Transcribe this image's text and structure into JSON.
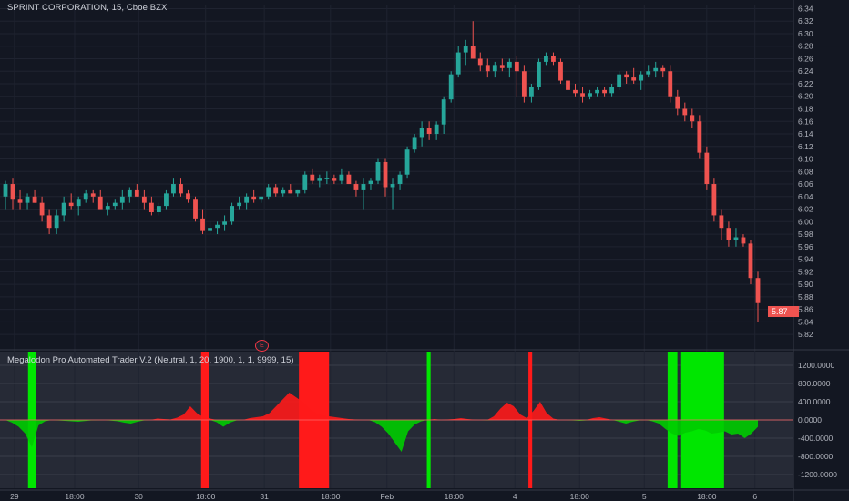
{
  "header": {
    "title": "SPRINT CORPORATION, 15, Cboe BZX",
    "indicator_title": "Megalodon Pro Automated Trader V.2 (Neutral, 1, 20, 1900, 1, 1, 9999, 15)",
    "last_price_badge": "5.87",
    "event_marker": "E"
  },
  "colors": {
    "background": "#131722",
    "up": "#26a69a",
    "down": "#ef5350",
    "green_band": "#00e600",
    "red_band": "#ff1a1a",
    "osc_fill": "#ff1a1a"
  },
  "chart_data": [
    {
      "type": "candlestick",
      "title": "SPRINT CORPORATION, 15, Cboe BZX",
      "y_ticks": [
        "6.34",
        "6.32",
        "6.30",
        "6.28",
        "6.26",
        "6.24",
        "6.22",
        "6.20",
        "6.18",
        "6.16",
        "6.14",
        "6.12",
        "6.10",
        "6.08",
        "6.06",
        "6.04",
        "6.02",
        "6.00",
        "5.98",
        "5.96",
        "5.94",
        "5.92",
        "5.90",
        "5.88",
        "5.86",
        "5.84",
        "5.82"
      ],
      "ylim": [
        5.81,
        6.345
      ],
      "x_ticks": [
        "29",
        "18:00",
        "30",
        "18:00",
        "31",
        "18:00",
        "Feb",
        "18:00",
        "4",
        "18:00",
        "5",
        "18:00",
        "6"
      ],
      "series": [
        {
          "ohlc": [
            [
              6.04,
              6.065,
              6.02,
              6.06
            ],
            [
              6.06,
              6.07,
              6.02,
              6.035
            ],
            [
              6.035,
              6.05,
              6.02,
              6.03
            ],
            [
              6.03,
              6.045,
              6.02,
              6.04
            ],
            [
              6.04,
              6.05,
              6.03,
              6.03
            ],
            [
              6.03,
              6.04,
              6.0,
              6.01
            ],
            [
              6.01,
              6.02,
              5.98,
              5.99
            ],
            [
              5.99,
              6.02,
              5.98,
              6.01
            ],
            [
              6.01,
              6.04,
              6.0,
              6.03
            ],
            [
              6.03,
              6.045,
              6.02,
              6.025
            ],
            [
              6.025,
              6.04,
              6.01,
              6.035
            ],
            [
              6.035,
              6.05,
              6.03,
              6.045
            ],
            [
              6.045,
              6.05,
              6.03,
              6.04
            ],
            [
              6.04,
              6.05,
              6.02,
              6.02
            ],
            [
              6.02,
              6.03,
              6.01,
              6.025
            ],
            [
              6.025,
              6.035,
              6.02,
              6.03
            ],
            [
              6.03,
              6.05,
              6.02,
              6.04
            ],
            [
              6.04,
              6.055,
              6.03,
              6.05
            ],
            [
              6.05,
              6.06,
              6.04,
              6.04
            ],
            [
              6.04,
              6.05,
              6.02,
              6.03
            ],
            [
              6.03,
              6.04,
              6.01,
              6.015
            ],
            [
              6.015,
              6.03,
              6.01,
              6.025
            ],
            [
              6.025,
              6.05,
              6.02,
              6.045
            ],
            [
              6.045,
              6.07,
              6.04,
              6.06
            ],
            [
              6.06,
              6.07,
              6.04,
              6.045
            ],
            [
              6.045,
              6.05,
              6.03,
              6.035
            ],
            [
              6.035,
              6.04,
              6.0,
              6.005
            ],
            [
              6.005,
              6.02,
              5.98,
              5.985
            ],
            [
              5.985,
              6.0,
              5.98,
              5.99
            ],
            [
              5.99,
              6.0,
              5.98,
              5.995
            ],
            [
              5.995,
              6.01,
              5.985,
              6.0
            ],
            [
              6.0,
              6.03,
              5.995,
              6.025
            ],
            [
              6.025,
              6.04,
              6.02,
              6.03
            ],
            [
              6.03,
              6.045,
              6.02,
              6.04
            ],
            [
              6.04,
              6.05,
              6.03,
              6.035
            ],
            [
              6.035,
              6.04,
              6.03,
              6.04
            ],
            [
              6.04,
              6.06,
              6.035,
              6.055
            ],
            [
              6.055,
              6.06,
              6.04,
              6.045
            ],
            [
              6.045,
              6.055,
              6.04,
              6.05
            ],
            [
              6.05,
              6.06,
              6.045,
              6.045
            ],
            [
              6.045,
              6.05,
              6.04,
              6.05
            ],
            [
              6.05,
              6.08,
              6.045,
              6.075
            ],
            [
              6.075,
              6.085,
              6.06,
              6.065
            ],
            [
              6.065,
              6.075,
              6.055,
              6.07
            ],
            [
              6.07,
              6.08,
              6.06,
              6.07
            ],
            [
              6.07,
              6.075,
              6.06,
              6.065
            ],
            [
              6.065,
              6.085,
              6.06,
              6.075
            ],
            [
              6.075,
              6.08,
              6.06,
              6.06
            ],
            [
              6.06,
              6.065,
              6.04,
              6.05
            ],
            [
              6.05,
              6.07,
              6.02,
              6.06
            ],
            [
              6.06,
              6.07,
              6.05,
              6.065
            ],
            [
              6.065,
              6.1,
              6.06,
              6.095
            ],
            [
              6.095,
              6.1,
              6.04,
              6.055
            ],
            [
              6.055,
              6.07,
              6.02,
              6.06
            ],
            [
              6.06,
              6.08,
              6.05,
              6.075
            ],
            [
              6.075,
              6.12,
              6.07,
              6.115
            ],
            [
              6.115,
              6.14,
              6.11,
              6.135
            ],
            [
              6.135,
              6.16,
              6.12,
              6.15
            ],
            [
              6.15,
              6.16,
              6.13,
              6.14
            ],
            [
              6.14,
              6.16,
              6.13,
              6.155
            ],
            [
              6.155,
              6.2,
              6.14,
              6.195
            ],
            [
              6.195,
              6.24,
              6.19,
              6.235
            ],
            [
              6.235,
              6.28,
              6.23,
              6.27
            ],
            [
              6.27,
              6.29,
              6.25,
              6.28
            ],
            [
              6.28,
              6.32,
              6.26,
              6.26
            ],
            [
              6.26,
              6.27,
              6.24,
              6.25
            ],
            [
              6.25,
              6.26,
              6.23,
              6.24
            ],
            [
              6.24,
              6.255,
              6.23,
              6.25
            ],
            [
              6.25,
              6.26,
              6.24,
              6.245
            ],
            [
              6.245,
              6.26,
              6.23,
              6.255
            ],
            [
              6.255,
              6.265,
              6.2,
              6.24
            ],
            [
              6.24,
              6.25,
              6.19,
              6.2
            ],
            [
              6.2,
              6.22,
              6.19,
              6.215
            ],
            [
              6.215,
              6.26,
              6.21,
              6.255
            ],
            [
              6.255,
              6.27,
              6.25,
              6.265
            ],
            [
              6.265,
              6.27,
              6.25,
              6.255
            ],
            [
              6.255,
              6.26,
              6.22,
              6.225
            ],
            [
              6.225,
              6.23,
              6.2,
              6.21
            ],
            [
              6.21,
              6.22,
              6.2,
              6.205
            ],
            [
              6.205,
              6.215,
              6.19,
              6.2
            ],
            [
              6.2,
              6.21,
              6.195,
              6.205
            ],
            [
              6.205,
              6.215,
              6.2,
              6.21
            ],
            [
              6.21,
              6.215,
              6.2,
              6.205
            ],
            [
              6.205,
              6.22,
              6.2,
              6.215
            ],
            [
              6.215,
              6.24,
              6.21,
              6.235
            ],
            [
              6.235,
              6.24,
              6.22,
              6.23
            ],
            [
              6.23,
              6.245,
              6.22,
              6.225
            ],
            [
              6.225,
              6.24,
              6.21,
              6.235
            ],
            [
              6.235,
              6.25,
              6.23,
              6.24
            ],
            [
              6.24,
              6.255,
              6.23,
              6.245
            ]
          ]
        }
      ]
    },
    {
      "type": "area",
      "title": "Megalodon Pro Automated Trader V.2 (Neutral, 1, 20, 1900, 1, 1, 9999, 15)",
      "y_ticks": [
        "1200.0000",
        "800.0000",
        "400.0000",
        "0.0000",
        "-400.0000",
        "-800.0000",
        "-1200.0000"
      ],
      "ylim": [
        -1500,
        1500
      ],
      "bands": [
        {
          "color": "green",
          "x": [
            0.03,
            0.04
          ]
        },
        {
          "color": "red",
          "x": [
            0.26,
            0.27
          ]
        },
        {
          "color": "red",
          "x": [
            0.39,
            0.43
          ]
        },
        {
          "color": "green",
          "x": [
            0.56,
            0.565
          ]
        },
        {
          "color": "red",
          "x": [
            0.695,
            0.7
          ]
        },
        {
          "color": "green",
          "x": [
            0.88,
            0.893
          ]
        },
        {
          "color": "green",
          "x": [
            0.898,
            0.955
          ]
        }
      ],
      "series": [
        {
          "values": [
            0,
            -60,
            -150,
            -300,
            -600,
            -120,
            -30,
            0,
            -10,
            -20,
            -30,
            -40,
            -25,
            -10,
            -5,
            0,
            -15,
            -30,
            -60,
            -80,
            -40,
            -10,
            0,
            30,
            20,
            10,
            50,
            120,
            300,
            150,
            60,
            30,
            -50,
            -150,
            -60,
            -10,
            0,
            40,
            60,
            80,
            150,
            300,
            450,
            600,
            500,
            400,
            250,
            150,
            100,
            80,
            60,
            40,
            20,
            10,
            0,
            0,
            -50,
            -150,
            -300,
            -500,
            -700,
            -250,
            -100,
            -30,
            0,
            20,
            0,
            10,
            20,
            40,
            20,
            5,
            0,
            -10,
            80,
            250,
            380,
            300,
            120,
            40,
            200,
            400,
            150,
            30,
            0,
            0,
            -10,
            -20,
            -10,
            40,
            60,
            30,
            0,
            -40,
            -80,
            -40,
            -10,
            0,
            -30,
            -80,
            -200,
            -300,
            -350,
            -280,
            -250,
            -200,
            -230,
            -300,
            -280,
            -250,
            -320,
            -300,
            -400,
            -300,
            -150
          ]
        }
      ]
    }
  ]
}
